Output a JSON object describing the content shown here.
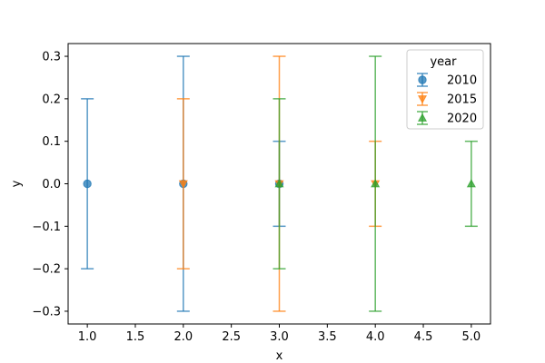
{
  "chart_data": {
    "type": "scatter",
    "subtype": "errorbar",
    "title": "",
    "xlabel": "x",
    "ylabel": "y",
    "xlim": [
      0.8,
      5.2
    ],
    "ylim": [
      -0.33,
      0.33
    ],
    "xticks": [
      1.0,
      1.5,
      2.0,
      2.5,
      3.0,
      3.5,
      4.0,
      4.5,
      5.0
    ],
    "yticks": [
      -0.3,
      -0.2,
      -0.1,
      0.0,
      0.1,
      0.2,
      0.3
    ],
    "xtick_labels": [
      "1.0",
      "1.5",
      "2.0",
      "2.5",
      "3.0",
      "3.5",
      "4.0",
      "4.5",
      "5.0"
    ],
    "ytick_labels": [
      "−0.3",
      "−0.2",
      "−0.1",
      "0.0",
      "0.1",
      "0.2",
      "0.3"
    ],
    "grid": false,
    "legend": {
      "title": "year",
      "placement": "top-right"
    },
    "series": [
      {
        "name": "2010",
        "marker": "circle",
        "color": "#1f77b4",
        "x": [
          1,
          2,
          3
        ],
        "y": [
          0,
          0,
          0
        ],
        "yerr": [
          0.2,
          0.3,
          0.1
        ]
      },
      {
        "name": "2015",
        "marker": "triangle-down",
        "color": "#ff7f0e",
        "x": [
          2,
          3,
          4
        ],
        "y": [
          0,
          0,
          0
        ],
        "yerr": [
          0.2,
          0.3,
          0.1
        ]
      },
      {
        "name": "2020",
        "marker": "triangle-up",
        "color": "#2ca02c",
        "x": [
          3,
          4,
          5
        ],
        "y": [
          0,
          0,
          0
        ],
        "yerr": [
          0.2,
          0.3,
          0.1
        ]
      }
    ]
  }
}
